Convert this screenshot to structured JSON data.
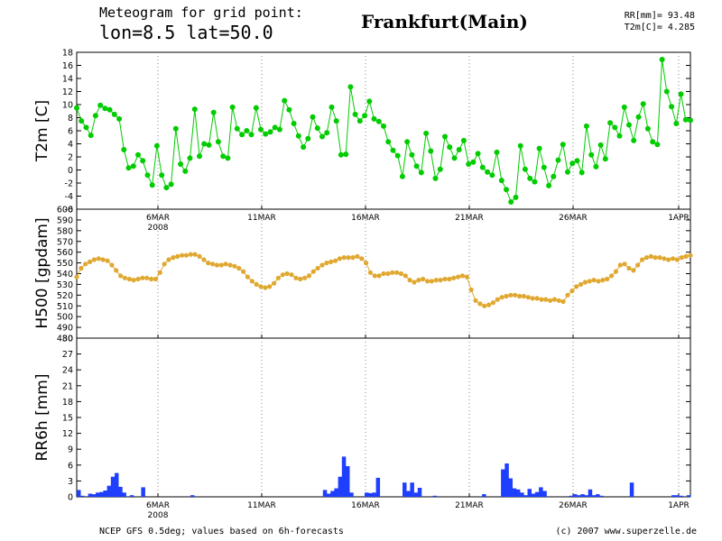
{
  "header": {
    "line1": "Meteogram for grid point:",
    "line2": "lon=8.5 lat=50.0",
    "location": "Frankfurt(Main)",
    "sum_rr": "RR[mm]= 93.48",
    "sum_t2m": "T2m[C]= 4.285"
  },
  "footer": {
    "source": "NCEP GFS 0.5deg; values based on 6h-forecasts",
    "credit": "(c) 2007 www.superzelle.de"
  },
  "colors": {
    "t2m": "#00cc00",
    "h500": "#e0a830",
    "rr": "#1f3fff",
    "grid": "#888888"
  },
  "chart_data": [
    {
      "type": "line",
      "ylabel": "T2m [C]",
      "ylim": [
        -6,
        18
      ],
      "yticks": [
        -6,
        -4,
        -2,
        0,
        2,
        4,
        6,
        8,
        10,
        12,
        14,
        16,
        18
      ],
      "x_start": "2008-03-01 18:00",
      "x_step": "6h",
      "x_ticks": [
        "6MAR",
        "11MAR",
        "16MAR",
        "21MAR",
        "26MAR",
        "1APR"
      ],
      "year_label": "2008",
      "series": [
        {
          "values": [
            9.5,
            7.5,
            6.5,
            5.3,
            8.3,
            9.9,
            9.4,
            9.2,
            8.5,
            7.8,
            3.1,
            0.3,
            0.6,
            2.3,
            1.4,
            -0.8,
            -2.3,
            3.7,
            -0.8,
            -2.7,
            -2.2,
            6.3,
            0.9,
            -0.2,
            1.8,
            9.3,
            2.1,
            4,
            3.8,
            8.8,
            4.3,
            2.1,
            1.8,
            9.6,
            6.3,
            5.4,
            6,
            5.4,
            9.5,
            6.2,
            5.5,
            5.8,
            6.5,
            6.2,
            10.6,
            9.2,
            7.1,
            5.2,
            3.5,
            4.8,
            8.1,
            6.4,
            5.1,
            5.7,
            9.6,
            7.5,
            2.3,
            2.4,
            12.7,
            8.5,
            7.5,
            8.3,
            10.5,
            7.8,
            7.4,
            6.7,
            4.3,
            3,
            2.2,
            -1,
            4.3,
            2.3,
            0.6,
            -0.4,
            5.6,
            2.9,
            -1.3,
            0.1,
            5.1,
            3.5,
            1.8,
            3.1,
            4.5,
            0.9,
            1.2,
            2.5,
            0.4,
            -0.3,
            -0.8,
            2.7,
            -1.6,
            -3,
            -4.9,
            -4.2,
            3.7,
            0.1,
            -1.3,
            -1.8,
            3.3,
            0.4,
            -2.4,
            -1,
            1.5,
            3.9,
            -0.3,
            1,
            1.4,
            -0.4,
            6.7,
            2.3,
            0.5,
            3.8,
            1.7,
            7.2,
            6.5,
            5.2,
            9.6,
            6.9,
            4.5,
            8.1,
            10.1,
            6.3,
            4.3,
            3.9,
            16.9,
            12,
            9.7,
            7.1,
            11.6,
            7.7,
            7.6
          ]
        }
      ]
    },
    {
      "type": "line",
      "ylabel": "H500 [gpdam]",
      "ylim": [
        480,
        600
      ],
      "yticks": [
        480,
        490,
        500,
        510,
        520,
        530,
        540,
        550,
        560,
        570,
        580,
        590,
        600
      ],
      "x_ticks": [
        "6MAR",
        "11MAR",
        "16MAR",
        "21MAR",
        "26MAR",
        "1APR"
      ],
      "series": [
        {
          "values": [
            537,
            545,
            549,
            551,
            553,
            554,
            553,
            552,
            548,
            543,
            538,
            536,
            535,
            534,
            535,
            536,
            536,
            535,
            535,
            541,
            549,
            553,
            555,
            556,
            557,
            557,
            558,
            558,
            556,
            553,
            550,
            549,
            548,
            548,
            549,
            548,
            547,
            545,
            542,
            537,
            533,
            530,
            528,
            527,
            528,
            531,
            536,
            539,
            540,
            539,
            536,
            535,
            536,
            538,
            542,
            545,
            548,
            550,
            551,
            552,
            554,
            555,
            555,
            555,
            556,
            554,
            550,
            541,
            538,
            538,
            540,
            540,
            541,
            541,
            540,
            538,
            534,
            532,
            534,
            535,
            533,
            533,
            534,
            534,
            535,
            535,
            536,
            537,
            538,
            537,
            525,
            515,
            512,
            510,
            511,
            513,
            516,
            518,
            519,
            520,
            520,
            519,
            519,
            518,
            517,
            517,
            516,
            516,
            515,
            516,
            515,
            514,
            520,
            524,
            528,
            530,
            532,
            533,
            534,
            533,
            534,
            535,
            538,
            542,
            548,
            549,
            545,
            543,
            548,
            553,
            555,
            556,
            555,
            555,
            554,
            553,
            554,
            553,
            555,
            556,
            557
          ]
        }
      ]
    },
    {
      "type": "bar",
      "ylabel": "RR6h [mm]",
      "ylim": [
        0,
        30
      ],
      "yticks": [
        0,
        3,
        6,
        9,
        12,
        15,
        18,
        21,
        24,
        27,
        30
      ],
      "x_ticks": [
        "6MAR",
        "11MAR",
        "16MAR",
        "21MAR",
        "26MAR",
        "1APR"
      ],
      "year_label": "2008",
      "series": [
        {
          "values": [
            1.3,
            0.2,
            0,
            0.6,
            0.5,
            0.8,
            0.9,
            1.2,
            2.1,
            3.8,
            4.5,
            1.9,
            0.8,
            0,
            0.3,
            0,
            0,
            1.8,
            0,
            0,
            0,
            0,
            0,
            0,
            0,
            0,
            0,
            0,
            0,
            0,
            0.3,
            0,
            0,
            0,
            0,
            0,
            0,
            0,
            0,
            0,
            0,
            0,
            0,
            0,
            0,
            0,
            0,
            0,
            0,
            0,
            0,
            0,
            0,
            0,
            0,
            0,
            0,
            0,
            0,
            0,
            0,
            0,
            0,
            0,
            0,
            1.3,
            0.6,
            1.1,
            1.6,
            3.8,
            7.6,
            5.8,
            0.8,
            0,
            0,
            0,
            0.8,
            0.7,
            0.8,
            3.6,
            0,
            0,
            0,
            0,
            0,
            0,
            2.7,
            1.1,
            2.7,
            0.8,
            1.7,
            0,
            0,
            0,
            0.2,
            0,
            0,
            0,
            0,
            0,
            0,
            0,
            0,
            0,
            0,
            0,
            0,
            0.5,
            0,
            0,
            0,
            0,
            5.2,
            6.3,
            3.5,
            1.6,
            1.4,
            0.8,
            0.3,
            1.5,
            0.6,
            0.9,
            1.8,
            1.1,
            0,
            0,
            0,
            0,
            0,
            0,
            0.2,
            0.5,
            0.3,
            0.5,
            0.3,
            1.4,
            0.3,
            0.5,
            0.2,
            0,
            0,
            0,
            0,
            0,
            0,
            0,
            2.7,
            0,
            0,
            0,
            0,
            0,
            0,
            0,
            0,
            0,
            0,
            0.3,
            0.3,
            0.2,
            0,
            0.3
          ]
        }
      ]
    }
  ]
}
